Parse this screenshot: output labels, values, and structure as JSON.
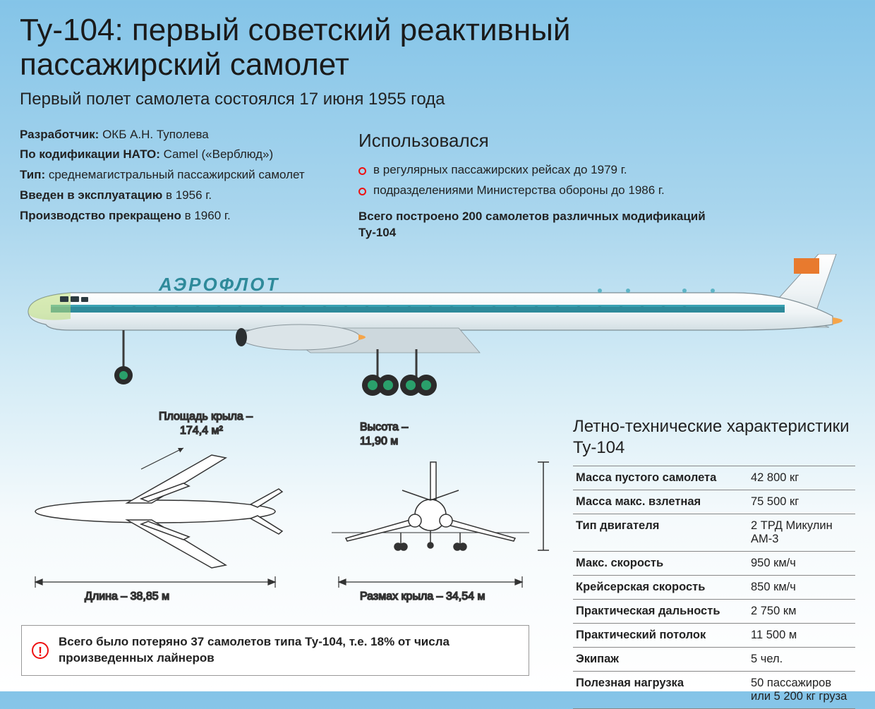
{
  "header": {
    "title_line1": "Ту-104: первый советский реактивный",
    "title_line2": "пассажирский самолет",
    "subtitle": "Первый полет самолета состоялся 17 июня 1955 года"
  },
  "left_info": [
    {
      "label": "Разработчик:",
      "value": " ОКБ А.Н. Туполева"
    },
    {
      "label": "По кодификации НАТО:",
      "value": " Camel («Верблюд»)"
    },
    {
      "label": "Тип:",
      "value": " среднемагистральный пассажирский самолет"
    },
    {
      "label": "Введен в эксплуатацию",
      "value": " в 1956 г."
    },
    {
      "label": "Производство прекращено",
      "value": " в 1960 г."
    }
  ],
  "usage": {
    "heading": "Использовался",
    "items": [
      "в регулярных пассажирских рейсах до 1979 г.",
      "подразделениями Министерства обороны до 1986 г."
    ],
    "built": "Всего построено 200 самолетов различных модификаций Ту-104"
  },
  "plane": {
    "livery_text": "АЭРОФЛОТ",
    "fuselage_top": "#f2f6f8",
    "fuselage_bot": "#dbe5ea",
    "stripe": "#2e8a9a",
    "flag": "#e87a2e",
    "engine": "#d8e2e6",
    "flame": "#f5a54a",
    "wheel_hub": "#2aa06b",
    "tire": "#2b2b2b",
    "nose_radome": "#b4d86b",
    "outline": "#6a7a82"
  },
  "diagrams": {
    "wing_area_label": "Площадь крыла –",
    "wing_area_value": "174,4 м²",
    "height_label": "Высота –",
    "height_value": "11,90 м",
    "length_label": "Длина – 38,85 м",
    "span_label": "Размах крыла – 34,54 м",
    "line_color": "#333333",
    "fill": "#ffffff"
  },
  "specs": {
    "title": "Летно-технические характеристики Ту-104",
    "rows": [
      {
        "k": "Масса пустого самолета",
        "v": "42 800 кг"
      },
      {
        "k": "Масса макс. взлетная",
        "v": "75 500 кг"
      },
      {
        "k": "Тип двигателя",
        "v": "2 ТРД Микулин АМ-3"
      },
      {
        "k": "Макс. скорость",
        "v": "950 км/ч"
      },
      {
        "k": "Крейсерская скорость",
        "v": "850 км/ч"
      },
      {
        "k": "Практическая дальность",
        "v": "2 750 км"
      },
      {
        "k": "Практический потолок",
        "v": "11 500 м"
      },
      {
        "k": "Экипаж",
        "v": "5 чел."
      },
      {
        "k": "Полезная нагрузка",
        "v": "50 пассажиров или 5 200 кг груза"
      }
    ]
  },
  "note": {
    "text_bold": "Всего было потеряно 37 самолетов типа Ту-104, т.е. 18% от числа произведенных лайнеров"
  }
}
